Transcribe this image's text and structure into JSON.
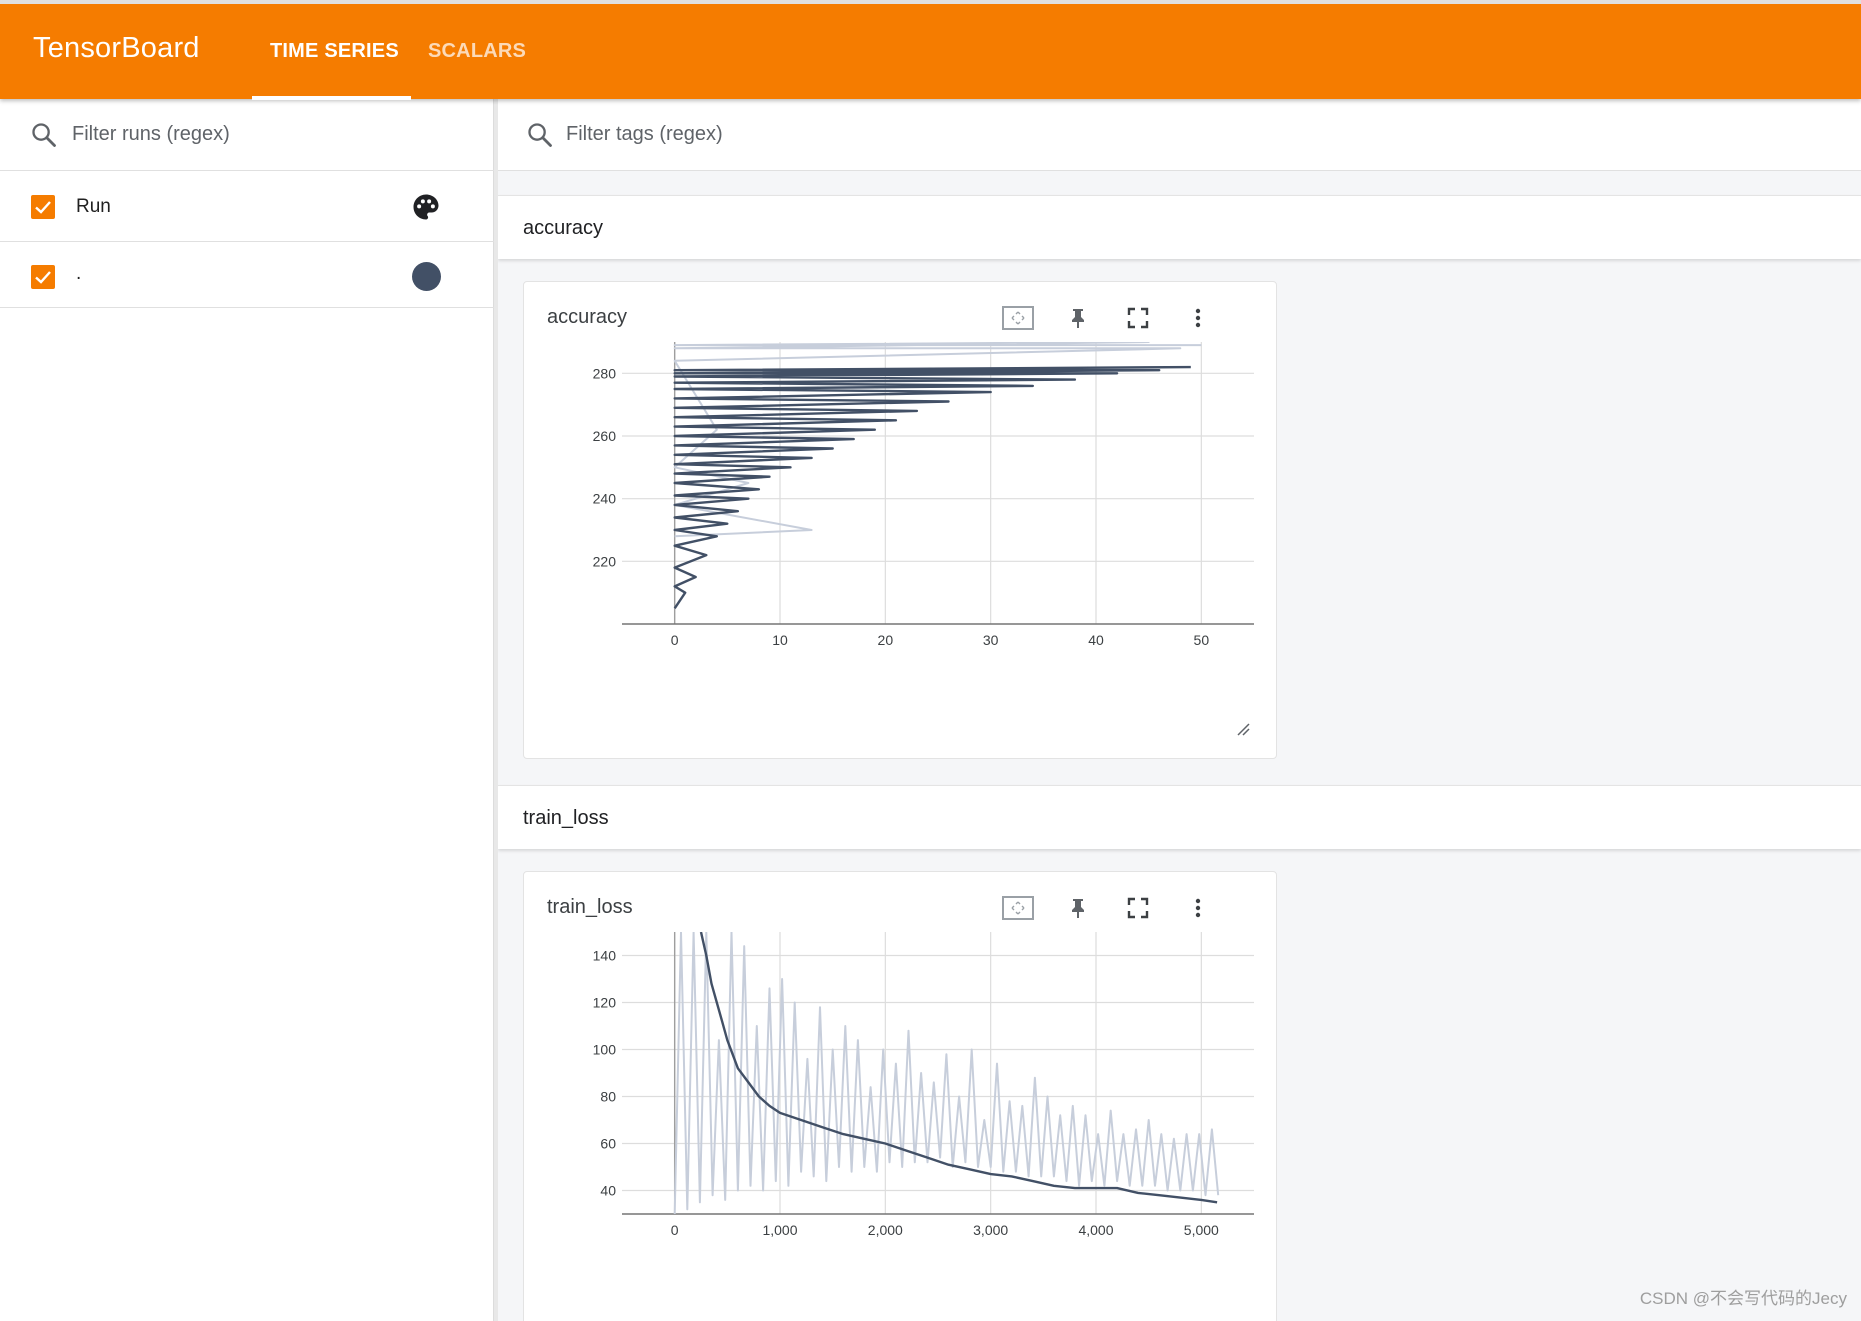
{
  "header": {
    "brand": "TensorBoard",
    "tabs": [
      {
        "label": "TIME SERIES",
        "active": true
      },
      {
        "label": "SCALARS",
        "active": false
      }
    ],
    "accent_color": "#f57c00"
  },
  "sidebar": {
    "filter_placeholder": "Filter runs (regex)",
    "runs": [
      {
        "label": "Run",
        "checked": true,
        "icon": "palette-icon"
      },
      {
        "label": ".",
        "checked": true,
        "color": "#425066"
      }
    ]
  },
  "main": {
    "filter_placeholder": "Filter tags (regex)",
    "groups": [
      {
        "title": "accuracy",
        "card_title": "accuracy"
      },
      {
        "title": "train_loss",
        "card_title": "train_loss"
      }
    ]
  },
  "chart_data": [
    {
      "type": "line",
      "title": "accuracy",
      "xlabel": "",
      "ylabel": "",
      "xlim": [
        -5,
        55
      ],
      "ylim": [
        200,
        290
      ],
      "x_ticks": [
        "0",
        "10",
        "20",
        "30",
        "40",
        "50"
      ],
      "y_ticks": [
        "220",
        "240",
        "260",
        "280"
      ],
      "grid": true,
      "series": [
        {
          "color": "#425066",
          "smoothed": true,
          "x": [
            0,
            1,
            0,
            2,
            0,
            3,
            0,
            4,
            0,
            5,
            0,
            6,
            0,
            7,
            0,
            8,
            0,
            9,
            0,
            11,
            0,
            13,
            0,
            15,
            0,
            17,
            0,
            19,
            0,
            21,
            0,
            23,
            0,
            26,
            0,
            30,
            0,
            34,
            0,
            38,
            0,
            42,
            0,
            46,
            0,
            49
          ],
          "y": [
            205,
            210,
            212,
            215,
            218,
            222,
            225,
            228,
            230,
            232,
            234,
            236,
            238,
            240,
            241,
            243,
            245,
            247,
            248,
            250,
            251,
            253,
            254,
            256,
            257,
            259,
            260,
            262,
            263,
            265,
            266,
            268,
            269,
            271,
            272,
            274,
            275,
            276,
            277,
            278,
            279,
            280,
            280,
            281,
            281,
            282
          ]
        },
        {
          "color": "#c7cedb",
          "smoothed": false,
          "x": [
            0,
            13,
            0,
            7,
            0,
            4,
            0,
            48,
            0,
            45,
            0,
            50
          ],
          "y": [
            228,
            230,
            238,
            245,
            250,
            262,
            284,
            288,
            288,
            290,
            289,
            289
          ]
        }
      ]
    },
    {
      "type": "line",
      "title": "train_loss",
      "xlabel": "",
      "ylabel": "",
      "xlim": [
        -500,
        5500
      ],
      "ylim": [
        30,
        150
      ],
      "x_ticks": [
        "0",
        "1,000",
        "2,000",
        "3,000",
        "4,000",
        "5,000"
      ],
      "y_ticks": [
        "40",
        "60",
        "80",
        "100",
        "120",
        "140"
      ],
      "grid": true,
      "series": [
        {
          "color": "#425066",
          "smoothed": true,
          "x": [
            250,
            300,
            350,
            400,
            450,
            500,
            600,
            700,
            800,
            900,
            1000,
            1200,
            1400,
            1600,
            1800,
            2000,
            2200,
            2400,
            2600,
            2800,
            3000,
            3200,
            3400,
            3600,
            3800,
            4000,
            4200,
            4400,
            4600,
            4800,
            5000,
            5150
          ],
          "y": [
            150,
            140,
            128,
            120,
            112,
            104,
            92,
            86,
            80,
            76,
            73,
            70,
            67,
            64,
            62,
            60,
            57,
            54,
            51,
            49,
            47,
            46,
            44,
            42,
            41,
            41,
            41,
            39,
            38,
            37,
            36,
            35
          ]
        },
        {
          "color": "#c7cedb",
          "smoothed": false,
          "x": [
            0,
            60,
            120,
            180,
            240,
            300,
            360,
            420,
            480,
            540,
            600,
            660,
            720,
            780,
            840,
            900,
            960,
            1020,
            1080,
            1140,
            1200,
            1260,
            1320,
            1380,
            1440,
            1500,
            1560,
            1620,
            1680,
            1740,
            1800,
            1860,
            1920,
            1980,
            2040,
            2100,
            2160,
            2220,
            2280,
            2340,
            2400,
            2460,
            2520,
            2580,
            2640,
            2700,
            2760,
            2820,
            2880,
            2940,
            3000,
            3060,
            3120,
            3180,
            3240,
            3300,
            3360,
            3420,
            3480,
            3540,
            3600,
            3660,
            3720,
            3780,
            3840,
            3900,
            3960,
            4020,
            4080,
            4140,
            4200,
            4260,
            4320,
            4380,
            4440,
            4500,
            4560,
            4620,
            4680,
            4740,
            4800,
            4860,
            4920,
            4980,
            5040,
            5100,
            5160
          ],
          "y": [
            30,
            150,
            32,
            150,
            35,
            150,
            38,
            104,
            36,
            150,
            40,
            144,
            42,
            110,
            40,
            126,
            44,
            130,
            42,
            120,
            48,
            96,
            46,
            118,
            44,
            100,
            50,
            110,
            48,
            104,
            50,
            84,
            48,
            100,
            52,
            94,
            50,
            108,
            52,
            90,
            52,
            86,
            54,
            98,
            50,
            80,
            52,
            100,
            50,
            70,
            50,
            94,
            48,
            78,
            48,
            76,
            46,
            88,
            46,
            80,
            46,
            72,
            44,
            76,
            42,
            72,
            44,
            64,
            42,
            74,
            44,
            64,
            42,
            66,
            42,
            70,
            42,
            64,
            40,
            62,
            40,
            64,
            40,
            64,
            38,
            66,
            38
          ]
        }
      ]
    }
  ],
  "footer": {
    "watermark": "CSDN @不会写代码的Jecy"
  }
}
